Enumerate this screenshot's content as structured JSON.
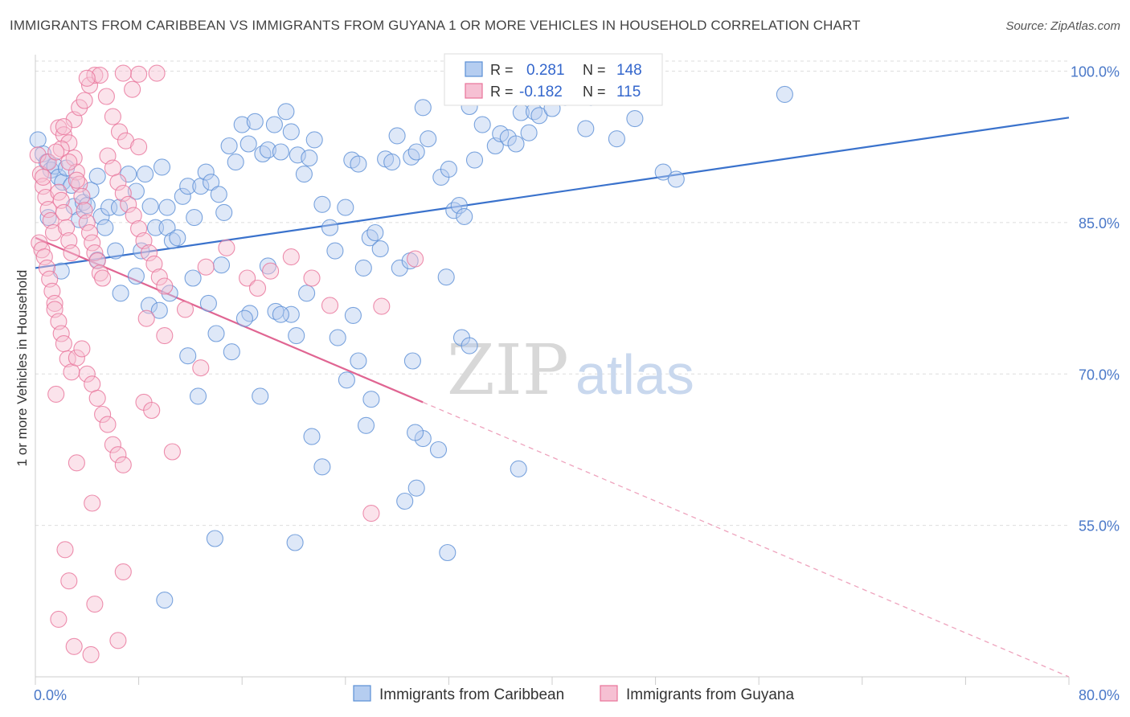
{
  "title": "IMMIGRANTS FROM CARIBBEAN VS IMMIGRANTS FROM GUYANA 1 OR MORE VEHICLES IN HOUSEHOLD CORRELATION CHART",
  "source": "Source: ZipAtlas.com",
  "watermark": {
    "zip": "ZIP",
    "atlas": "atlas"
  },
  "colors": {
    "blue": "#5b8fd6",
    "blue_fill": "#b5cdf0",
    "pink": "#e8739a",
    "pink_fill": "#f6c0d3",
    "grid": "#dddddd",
    "axis_label": "#4a78c8"
  },
  "legend": {
    "r_label": "R =",
    "n_label": "N =",
    "rows": [
      {
        "r": "0.281",
        "n": "148",
        "color": "blue"
      },
      {
        "r": "-0.182",
        "n": "115",
        "color": "pink"
      }
    ]
  },
  "chart_data": {
    "type": "scatter",
    "xlabel": "",
    "ylabel": "1 or more Vehicles in Household",
    "xlim": [
      0,
      80
    ],
    "ylim": [
      40,
      101
    ],
    "x_tick_labels": [
      {
        "value": 0,
        "label": "0.0%"
      },
      {
        "value": 80,
        "label": "80.0%"
      }
    ],
    "y_tick_labels": [
      {
        "value": 100,
        "label": "100.0%"
      },
      {
        "value": 85,
        "label": "85.0%"
      },
      {
        "value": 70,
        "label": "70.0%"
      },
      {
        "value": 55,
        "label": "55.0%"
      }
    ],
    "x_minor_ticks": [
      0,
      8,
      16,
      24,
      32,
      40,
      48,
      56,
      64,
      72,
      80
    ],
    "grid": true,
    "legend_position": "top-center",
    "series": [
      {
        "name": "Immigrants from Caribbean",
        "color": "blue",
        "trend": {
          "x": [
            0,
            80
          ],
          "y": [
            80.5,
            95.4
          ],
          "dashed_beyond": null
        },
        "points": [
          [
            0.2,
            93.2
          ],
          [
            0.6,
            91.8
          ],
          [
            0.9,
            91.0
          ],
          [
            1.2,
            90.2
          ],
          [
            1.5,
            90.6
          ],
          [
            1.8,
            89.5
          ],
          [
            2.1,
            89.0
          ],
          [
            2.4,
            90.4
          ],
          [
            2.8,
            88.7
          ],
          [
            1.0,
            85.5
          ],
          [
            3.0,
            86.6
          ],
          [
            3.4,
            85.3
          ],
          [
            3.7,
            87.0
          ],
          [
            4.0,
            86.7
          ],
          [
            4.3,
            88.2
          ],
          [
            4.8,
            89.6
          ],
          [
            5.1,
            85.6
          ],
          [
            5.4,
            84.5
          ],
          [
            5.7,
            86.5
          ],
          [
            6.2,
            82.2
          ],
          [
            6.5,
            86.5
          ],
          [
            7.2,
            89.8
          ],
          [
            7.8,
            88.1
          ],
          [
            8.2,
            82.2
          ],
          [
            8.5,
            89.8
          ],
          [
            8.9,
            86.6
          ],
          [
            9.3,
            84.5
          ],
          [
            9.8,
            90.5
          ],
          [
            10.2,
            84.5
          ],
          [
            10.6,
            83.2
          ],
          [
            11.0,
            83.5
          ],
          [
            11.4,
            87.6
          ],
          [
            11.8,
            88.6
          ],
          [
            12.3,
            85.5
          ],
          [
            12.8,
            88.6
          ],
          [
            13.2,
            90.0
          ],
          [
            13.6,
            89.0
          ],
          [
            14.2,
            87.8
          ],
          [
            14.6,
            86.0
          ],
          [
            15.0,
            92.6
          ],
          [
            15.5,
            91.0
          ],
          [
            16.0,
            94.7
          ],
          [
            16.5,
            92.8
          ],
          [
            17.0,
            95.0
          ],
          [
            17.6,
            91.8
          ],
          [
            18.0,
            92.2
          ],
          [
            18.5,
            94.7
          ],
          [
            19.0,
            92.0
          ],
          [
            19.4,
            96.0
          ],
          [
            19.8,
            94.0
          ],
          [
            20.3,
            91.7
          ],
          [
            20.8,
            89.8
          ],
          [
            21.2,
            91.4
          ],
          [
            21.6,
            93.2
          ],
          [
            22.2,
            86.8
          ],
          [
            22.8,
            84.5
          ],
          [
            23.2,
            82.2
          ],
          [
            24.0,
            86.5
          ],
          [
            24.5,
            91.2
          ],
          [
            25.0,
            90.8
          ],
          [
            25.4,
            80.5
          ],
          [
            25.9,
            83.5
          ],
          [
            26.3,
            84.0
          ],
          [
            26.7,
            82.4
          ],
          [
            27.1,
            91.3
          ],
          [
            27.6,
            91.0
          ],
          [
            28.0,
            93.6
          ],
          [
            29.1,
            91.5
          ],
          [
            29.5,
            92.0
          ],
          [
            30.0,
            96.4
          ],
          [
            30.4,
            93.3
          ],
          [
            31.4,
            89.5
          ],
          [
            32.0,
            90.3
          ],
          [
            32.4,
            86.2
          ],
          [
            32.8,
            86.7
          ],
          [
            33.2,
            85.6
          ],
          [
            33.6,
            96.5
          ],
          [
            34.0,
            91.2
          ],
          [
            34.6,
            94.7
          ],
          [
            35.2,
            98.1
          ],
          [
            35.6,
            92.6
          ],
          [
            36.0,
            93.8
          ],
          [
            36.6,
            93.4
          ],
          [
            37.2,
            92.8
          ],
          [
            37.6,
            95.9
          ],
          [
            38.2,
            93.9
          ],
          [
            38.6,
            96.0
          ],
          [
            39.0,
            95.6
          ],
          [
            40.0,
            96.3
          ],
          [
            41.0,
            97.4
          ],
          [
            42.0,
            99.2
          ],
          [
            42.6,
            94.3
          ],
          [
            43.0,
            97.4
          ],
          [
            44.0,
            99.6
          ],
          [
            45.0,
            93.3
          ],
          [
            46.4,
            95.3
          ],
          [
            47.2,
            99.8
          ],
          [
            48.6,
            90.0
          ],
          [
            49.6,
            89.3
          ],
          [
            58.0,
            97.7
          ],
          [
            10.2,
            86.5
          ],
          [
            12.2,
            79.5
          ],
          [
            14.4,
            80.8
          ],
          [
            16.6,
            76.0
          ],
          [
            18.0,
            80.7
          ],
          [
            19.8,
            75.9
          ],
          [
            21.0,
            78.0
          ],
          [
            23.4,
            73.6
          ],
          [
            25.0,
            71.3
          ],
          [
            28.2,
            80.5
          ],
          [
            29.0,
            81.2
          ],
          [
            2.0,
            80.2
          ],
          [
            4.8,
            81.3
          ],
          [
            6.6,
            78.0
          ],
          [
            7.8,
            79.7
          ],
          [
            8.8,
            76.8
          ],
          [
            9.6,
            76.3
          ],
          [
            10.4,
            78.0
          ],
          [
            11.8,
            71.8
          ],
          [
            12.6,
            67.8
          ],
          [
            13.4,
            77.0
          ],
          [
            14.0,
            74.0
          ],
          [
            15.2,
            72.2
          ],
          [
            16.2,
            75.5
          ],
          [
            17.4,
            67.8
          ],
          [
            18.6,
            76.2
          ],
          [
            19.0,
            75.9
          ],
          [
            20.2,
            73.8
          ],
          [
            21.4,
            63.8
          ],
          [
            22.2,
            60.8
          ],
          [
            24.1,
            69.4
          ],
          [
            24.6,
            75.8
          ],
          [
            25.6,
            64.9
          ],
          [
            26.0,
            67.5
          ],
          [
            28.6,
            57.4
          ],
          [
            29.5,
            58.7
          ],
          [
            29.2,
            71.3
          ],
          [
            30.0,
            63.6
          ],
          [
            31.2,
            62.5
          ],
          [
            31.8,
            79.6
          ],
          [
            33.0,
            73.6
          ],
          [
            33.6,
            72.8
          ],
          [
            37.4,
            60.6
          ],
          [
            13.9,
            53.7
          ],
          [
            20.1,
            53.3
          ],
          [
            31.9,
            52.3
          ],
          [
            10.0,
            47.6
          ],
          [
            29.4,
            64.2
          ]
        ]
      },
      {
        "name": "Immigrants from Guyana",
        "color": "pink",
        "trend": {
          "x": [
            0,
            30
          ],
          "y": [
            83.5,
            67.2
          ],
          "dashed_to": [
            80,
            40.0
          ]
        },
        "points": [
          [
            0.2,
            91.7
          ],
          [
            0.4,
            89.8
          ],
          [
            0.6,
            88.6
          ],
          [
            0.8,
            87.5
          ],
          [
            1.0,
            86.3
          ],
          [
            1.2,
            85.2
          ],
          [
            1.4,
            84.0
          ],
          [
            0.3,
            83.0
          ],
          [
            0.5,
            82.3
          ],
          [
            0.7,
            81.6
          ],
          [
            0.9,
            80.5
          ],
          [
            1.1,
            79.4
          ],
          [
            1.3,
            78.2
          ],
          [
            1.5,
            77.0
          ],
          [
            1.8,
            88.0
          ],
          [
            2.0,
            87.2
          ],
          [
            2.2,
            86.0
          ],
          [
            2.4,
            84.5
          ],
          [
            2.6,
            83.2
          ],
          [
            2.8,
            82.0
          ],
          [
            3.0,
            91.4
          ],
          [
            3.2,
            90.0
          ],
          [
            3.4,
            88.8
          ],
          [
            3.6,
            87.6
          ],
          [
            3.8,
            86.2
          ],
          [
            4.0,
            85.0
          ],
          [
            4.2,
            84.0
          ],
          [
            4.4,
            83.0
          ],
          [
            4.6,
            82.0
          ],
          [
            4.8,
            81.2
          ],
          [
            5.0,
            80.0
          ],
          [
            5.2,
            79.5
          ],
          [
            5.6,
            91.6
          ],
          [
            6.0,
            90.4
          ],
          [
            6.4,
            89.0
          ],
          [
            6.8,
            87.9
          ],
          [
            7.2,
            86.8
          ],
          [
            7.6,
            85.7
          ],
          [
            8.0,
            84.4
          ],
          [
            8.4,
            83.2
          ],
          [
            8.8,
            82.0
          ],
          [
            9.2,
            80.9
          ],
          [
            9.6,
            79.6
          ],
          [
            10.0,
            78.7
          ],
          [
            1.8,
            94.4
          ],
          [
            2.2,
            93.7
          ],
          [
            2.6,
            92.9
          ],
          [
            3.0,
            95.2
          ],
          [
            3.4,
            96.4
          ],
          [
            3.8,
            97.1
          ],
          [
            4.2,
            98.6
          ],
          [
            4.6,
            99.6
          ],
          [
            5.0,
            99.6
          ],
          [
            5.5,
            97.5
          ],
          [
            6.0,
            95.5
          ],
          [
            6.5,
            94.0
          ],
          [
            7.0,
            93.1
          ],
          [
            7.5,
            98.2
          ],
          [
            8.0,
            99.7
          ],
          [
            2.0,
            92.3
          ],
          [
            2.6,
            91.0
          ],
          [
            3.2,
            89.2
          ],
          [
            0.6,
            89.5
          ],
          [
            1.0,
            91.0
          ],
          [
            1.6,
            92.0
          ],
          [
            2.2,
            94.5
          ],
          [
            4.0,
            99.3
          ],
          [
            6.8,
            99.8
          ],
          [
            9.4,
            99.8
          ],
          [
            1.5,
            76.4
          ],
          [
            1.8,
            75.2
          ],
          [
            2.0,
            74.0
          ],
          [
            2.2,
            73.0
          ],
          [
            2.5,
            71.5
          ],
          [
            2.8,
            70.2
          ],
          [
            3.2,
            71.6
          ],
          [
            3.6,
            72.5
          ],
          [
            4.0,
            70.0
          ],
          [
            4.4,
            69.0
          ],
          [
            4.8,
            67.6
          ],
          [
            5.2,
            66.0
          ],
          [
            5.6,
            65.0
          ],
          [
            6.0,
            63.0
          ],
          [
            6.4,
            62.0
          ],
          [
            6.8,
            61.0
          ],
          [
            1.6,
            68.0
          ],
          [
            3.2,
            61.2
          ],
          [
            4.4,
            57.2
          ],
          [
            8.6,
            75.5
          ],
          [
            10.0,
            73.8
          ],
          [
            11.6,
            76.4
          ],
          [
            13.2,
            80.6
          ],
          [
            14.8,
            82.5
          ],
          [
            16.4,
            79.5
          ],
          [
            18.2,
            80.2
          ],
          [
            19.8,
            81.6
          ],
          [
            21.4,
            79.5
          ],
          [
            22.8,
            76.8
          ],
          [
            26.0,
            56.2
          ],
          [
            12.8,
            70.6
          ],
          [
            8.4,
            67.2
          ],
          [
            10.6,
            62.3
          ],
          [
            9.0,
            66.4
          ],
          [
            2.3,
            52.6
          ],
          [
            2.6,
            49.5
          ],
          [
            4.6,
            47.2
          ],
          [
            6.8,
            50.4
          ],
          [
            1.8,
            45.7
          ],
          [
            3.0,
            43.0
          ],
          [
            4.3,
            42.2
          ],
          [
            6.4,
            43.6
          ],
          [
            17.2,
            78.5
          ],
          [
            26.8,
            76.7
          ],
          [
            29.4,
            81.4
          ],
          [
            8.0,
            92.5
          ]
        ]
      }
    ]
  },
  "bottom_legend": [
    "Immigrants from Caribbean",
    "Immigrants from Guyana"
  ]
}
